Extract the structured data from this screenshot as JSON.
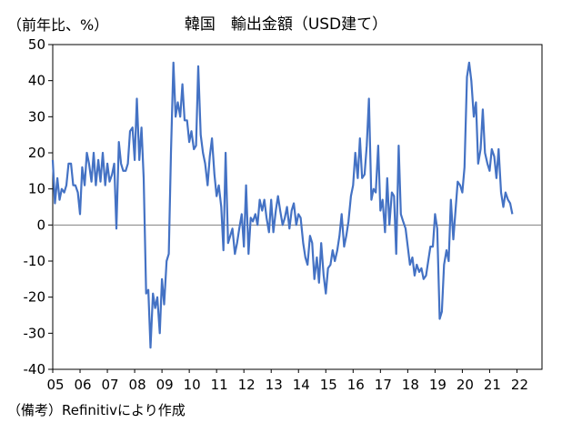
{
  "header": {
    "unit": "（前年比、%）",
    "title": "韓国　輸出金額（USD建て）"
  },
  "footer": {
    "source": "（備考）Refinitivにより作成"
  },
  "colors": {
    "line": "#4472c4",
    "zero_line": "#808080",
    "axis": "#000000"
  },
  "chart_data": {
    "type": "line",
    "title": "韓国　輸出金額（USD建て）",
    "ylabel": "（前年比、%）",
    "xlabel": "",
    "ylim": [
      -40,
      50
    ],
    "yticks": [
      50,
      40,
      30,
      20,
      10,
      0,
      -10,
      -20,
      -30,
      -40
    ],
    "xlim": [
      2005.0,
      2022.917
    ],
    "xtick_labels": [
      "05",
      "06",
      "07",
      "08",
      "09",
      "10",
      "11",
      "12",
      "13",
      "14",
      "15",
      "16",
      "17",
      "18",
      "19",
      "20",
      "21",
      "22"
    ],
    "grid": false,
    "legend": "none",
    "series": [
      {
        "name": "",
        "points": [
          [
            2005.0,
            18
          ],
          [
            2005.08,
            6
          ],
          [
            2005.17,
            13
          ],
          [
            2005.25,
            7
          ],
          [
            2005.33,
            10
          ],
          [
            2005.42,
            9
          ],
          [
            2005.5,
            11
          ],
          [
            2005.58,
            17
          ],
          [
            2005.67,
            17
          ],
          [
            2005.75,
            11
          ],
          [
            2005.83,
            11
          ],
          [
            2005.92,
            9
          ],
          [
            2006.0,
            3
          ],
          [
            2006.08,
            16
          ],
          [
            2006.17,
            11
          ],
          [
            2006.25,
            20
          ],
          [
            2006.33,
            17
          ],
          [
            2006.42,
            12
          ],
          [
            2006.5,
            20
          ],
          [
            2006.58,
            11
          ],
          [
            2006.67,
            18
          ],
          [
            2006.75,
            12
          ],
          [
            2006.83,
            20
          ],
          [
            2006.92,
            11
          ],
          [
            2007.0,
            17
          ],
          [
            2007.08,
            12
          ],
          [
            2007.17,
            14
          ],
          [
            2007.25,
            17
          ],
          [
            2007.33,
            -1
          ],
          [
            2007.42,
            23
          ],
          [
            2007.5,
            17
          ],
          [
            2007.58,
            15
          ],
          [
            2007.67,
            15
          ],
          [
            2007.75,
            17
          ],
          [
            2007.83,
            26
          ],
          [
            2007.92,
            27
          ],
          [
            2008.0,
            18
          ],
          [
            2008.08,
            35
          ],
          [
            2008.17,
            18
          ],
          [
            2008.25,
            27
          ],
          [
            2008.33,
            13
          ],
          [
            2008.42,
            -19
          ],
          [
            2008.5,
            -18
          ],
          [
            2008.58,
            -34
          ],
          [
            2008.67,
            -19
          ],
          [
            2008.75,
            -23
          ],
          [
            2008.83,
            -20
          ],
          [
            2008.92,
            -30
          ],
          [
            2009.0,
            -15
          ],
          [
            2009.08,
            -22
          ],
          [
            2009.17,
            -10
          ],
          [
            2009.25,
            -8
          ],
          [
            2009.33,
            20
          ],
          [
            2009.42,
            45
          ],
          [
            2009.5,
            30
          ],
          [
            2009.58,
            34
          ],
          [
            2009.67,
            30
          ],
          [
            2009.75,
            39
          ],
          [
            2009.83,
            29
          ],
          [
            2009.92,
            29
          ],
          [
            2010.0,
            23
          ],
          [
            2010.08,
            26
          ],
          [
            2010.17,
            21
          ],
          [
            2010.25,
            22
          ],
          [
            2010.33,
            44
          ],
          [
            2010.42,
            25
          ],
          [
            2010.5,
            20
          ],
          [
            2010.58,
            17
          ],
          [
            2010.67,
            11
          ],
          [
            2010.75,
            19
          ],
          [
            2010.83,
            24
          ],
          [
            2010.92,
            14
          ],
          [
            2011.0,
            8
          ],
          [
            2011.08,
            11
          ],
          [
            2011.17,
            5
          ],
          [
            2011.25,
            -7
          ],
          [
            2011.33,
            20
          ],
          [
            2011.42,
            -5
          ],
          [
            2011.5,
            -3
          ],
          [
            2011.58,
            -1
          ],
          [
            2011.67,
            -8
          ],
          [
            2011.75,
            -5
          ],
          [
            2011.83,
            -1
          ],
          [
            2011.92,
            3
          ],
          [
            2012.0,
            -6
          ],
          [
            2012.08,
            11
          ],
          [
            2012.17,
            -8
          ],
          [
            2012.25,
            2
          ],
          [
            2012.33,
            1
          ],
          [
            2012.42,
            3
          ],
          [
            2012.5,
            0
          ],
          [
            2012.58,
            7
          ],
          [
            2012.67,
            4
          ],
          [
            2012.75,
            7
          ],
          [
            2012.83,
            2
          ],
          [
            2012.92,
            -2
          ],
          [
            2013.0,
            7
          ],
          [
            2013.08,
            -2
          ],
          [
            2013.17,
            4
          ],
          [
            2013.25,
            8
          ],
          [
            2013.33,
            4
          ],
          [
            2013.42,
            0
          ],
          [
            2013.5,
            2
          ],
          [
            2013.58,
            5
          ],
          [
            2013.67,
            -1
          ],
          [
            2013.75,
            4
          ],
          [
            2013.83,
            6
          ],
          [
            2013.92,
            0
          ],
          [
            2014.0,
            3
          ],
          [
            2014.08,
            2
          ],
          [
            2014.17,
            -5
          ],
          [
            2014.25,
            -9
          ],
          [
            2014.33,
            -11
          ],
          [
            2014.42,
            -3
          ],
          [
            2014.5,
            -5
          ],
          [
            2014.58,
            -15
          ],
          [
            2014.67,
            -9
          ],
          [
            2014.75,
            -16
          ],
          [
            2014.83,
            -5
          ],
          [
            2014.92,
            -14
          ],
          [
            2015.0,
            -19
          ],
          [
            2015.08,
            -12
          ],
          [
            2015.17,
            -11
          ],
          [
            2015.25,
            -7
          ],
          [
            2015.33,
            -10
          ],
          [
            2015.42,
            -7
          ],
          [
            2015.5,
            -3
          ],
          [
            2015.58,
            3
          ],
          [
            2015.67,
            -6
          ],
          [
            2015.75,
            -3
          ],
          [
            2015.83,
            1
          ],
          [
            2015.92,
            8
          ],
          [
            2016.0,
            11
          ],
          [
            2016.08,
            20
          ],
          [
            2016.17,
            13
          ],
          [
            2016.25,
            24
          ],
          [
            2016.33,
            13
          ],
          [
            2016.42,
            14
          ],
          [
            2016.5,
            22
          ],
          [
            2016.58,
            35
          ],
          [
            2016.67,
            7
          ],
          [
            2016.75,
            10
          ],
          [
            2016.83,
            9
          ],
          [
            2016.92,
            22
          ],
          [
            2017.0,
            4
          ],
          [
            2017.08,
            7
          ],
          [
            2017.17,
            -2
          ],
          [
            2017.25,
            13
          ],
          [
            2017.33,
            0
          ],
          [
            2017.42,
            9
          ],
          [
            2017.5,
            8
          ],
          [
            2017.58,
            -8
          ],
          [
            2017.67,
            22
          ],
          [
            2017.75,
            3
          ],
          [
            2017.83,
            1
          ],
          [
            2017.92,
            -1
          ],
          [
            2018.0,
            -6
          ],
          [
            2018.08,
            -11
          ],
          [
            2018.17,
            -9
          ],
          [
            2018.25,
            -14
          ],
          [
            2018.33,
            -11
          ],
          [
            2018.42,
            -13
          ],
          [
            2018.5,
            -12
          ],
          [
            2018.58,
            -15
          ],
          [
            2018.67,
            -14
          ],
          [
            2018.75,
            -10
          ],
          [
            2018.83,
            -6
          ],
          [
            2018.92,
            -6
          ],
          [
            2019.0,
            3
          ],
          [
            2019.08,
            -1
          ],
          [
            2019.17,
            -26
          ],
          [
            2019.25,
            -24
          ],
          [
            2019.33,
            -11
          ],
          [
            2019.42,
            -7
          ],
          [
            2019.5,
            -10
          ],
          [
            2019.58,
            7
          ],
          [
            2019.67,
            -4
          ],
          [
            2019.75,
            4
          ],
          [
            2019.83,
            12
          ],
          [
            2019.92,
            11
          ],
          [
            2020.0,
            9
          ],
          [
            2020.08,
            16
          ],
          [
            2020.17,
            41
          ],
          [
            2020.25,
            45
          ],
          [
            2020.33,
            40
          ],
          [
            2020.42,
            30
          ],
          [
            2020.5,
            34
          ],
          [
            2020.58,
            17
          ],
          [
            2020.67,
            21
          ],
          [
            2020.75,
            32
          ],
          [
            2020.83,
            20
          ],
          [
            2020.92,
            17
          ],
          [
            2021.0,
            15
          ],
          [
            2021.08,
            21
          ],
          [
            2021.17,
            19
          ],
          [
            2021.25,
            13
          ],
          [
            2021.33,
            21
          ],
          [
            2021.42,
            9
          ],
          [
            2021.5,
            5
          ],
          [
            2021.58,
            9
          ],
          [
            2021.67,
            7
          ],
          [
            2021.75,
            6
          ],
          [
            2021.83,
            3
          ]
        ]
      }
    ]
  }
}
